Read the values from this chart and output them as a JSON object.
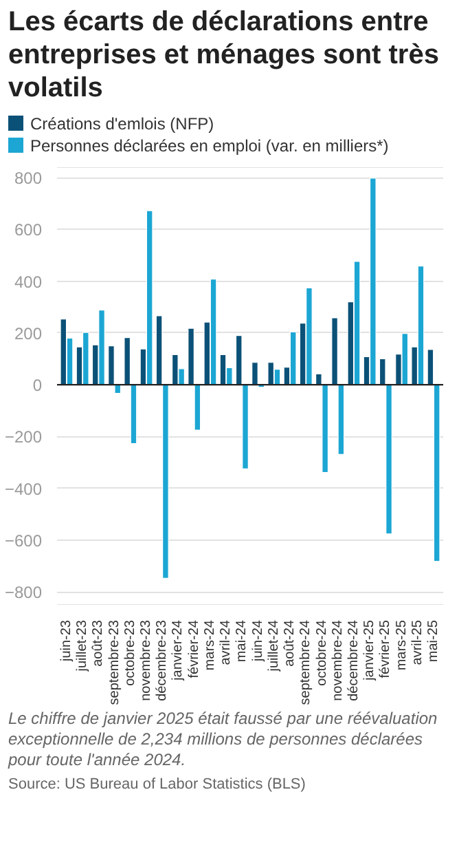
{
  "chart_data": {
    "type": "bar",
    "title": "Les écarts de déclarations entre entreprises et ménages sont très volatils",
    "categories": [
      "juin-23",
      "juillet-23",
      "août-23",
      "septembre-23",
      "octobre-23",
      "novembre-23",
      "décembre-23",
      "janvier-24",
      "février-24",
      "mars-24",
      "avril-24",
      "mai-24",
      "juin-24",
      "juillet-24",
      "août-24",
      "septembre-24",
      "octobre-24",
      "novembre-24",
      "décembre-24",
      "janvier-25",
      "février-25",
      "mars-25",
      "avril-25",
      "mai-25"
    ],
    "series": [
      {
        "name": "Créations d'emlois (NFP)",
        "color": "#0b5177",
        "values": [
          254,
          146,
          154,
          150,
          182,
          138,
          266,
          116,
          218,
          242,
          116,
          190,
          86,
          86,
          68,
          238,
          42,
          258,
          320,
          108,
          100,
          118,
          146,
          136
        ]
      },
      {
        "name": "Personnes déclarées en emploi (var. en milliers*)",
        "color": "#1ca6d3",
        "values": [
          180,
          202,
          288,
          -33,
          -227,
          672,
          -747,
          62,
          -175,
          408,
          66,
          -325,
          -10,
          60,
          204,
          374,
          -339,
          -269,
          476,
          798,
          -576,
          198,
          458,
          -682
        ]
      }
    ],
    "ylim": [
      -850,
      840
    ],
    "yticks": [
      -800,
      -600,
      -400,
      -200,
      0,
      200,
      400,
      600,
      800
    ],
    "grid": "y",
    "legend": "top",
    "annotations": [
      "Le chiffre de janvier 2025 était faussé par une réévaluation exceptionnelle de 2,234 millions de personnes déclarées pour toute l'année 2024.",
      "Source: US Bureau of Labor Statistics (BLS)"
    ]
  }
}
